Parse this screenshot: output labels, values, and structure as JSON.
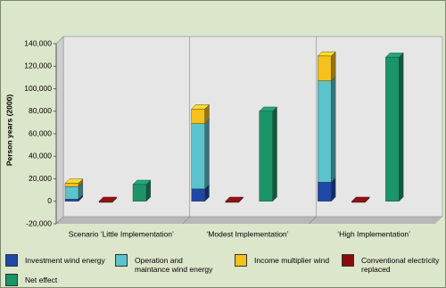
{
  "chart_data": {
    "type": "bar",
    "y_label": "Person years (2000)",
    "categories": [
      "Scenario ‘Little Implementation’",
      "‘Modest Implementation’",
      "‘High Implementation’"
    ],
    "series": [
      {
        "name": "Investment wind energy",
        "color": "#1f47a8",
        "values": [
          2000,
          11000,
          17000
        ]
      },
      {
        "name": "Operation and maintance wind energy",
        "color": "#5cc3cc",
        "values": [
          11000,
          58000,
          90000
        ]
      },
      {
        "name": "Income multiplier wind",
        "color": "#f5c11c",
        "values": [
          3000,
          13000,
          22000
        ]
      },
      {
        "name": "Conventional electricity replaced",
        "color": "#8b0a0a",
        "values": [
          -1000,
          -1000,
          -1000
        ]
      },
      {
        "name": "Net effect",
        "color": "#1b9468",
        "values": [
          15000,
          80000,
          128000
        ]
      }
    ],
    "ylim": [
      -20000,
      140000
    ],
    "yticks": [
      {
        "value": -20000,
        "label": "-20,000"
      },
      0,
      {
        "value": 20000,
        "label": "20,000"
      },
      {
        "value": 40000,
        "label": "40,000"
      },
      {
        "value": 60000,
        "label": "60,000"
      },
      {
        "value": 80000,
        "label": "80,000"
      },
      {
        "value": 100000,
        "label": "100,000"
      },
      {
        "value": 120000,
        "label": "120,000"
      },
      {
        "value": 140000,
        "label": "140,000"
      }
    ]
  }
}
